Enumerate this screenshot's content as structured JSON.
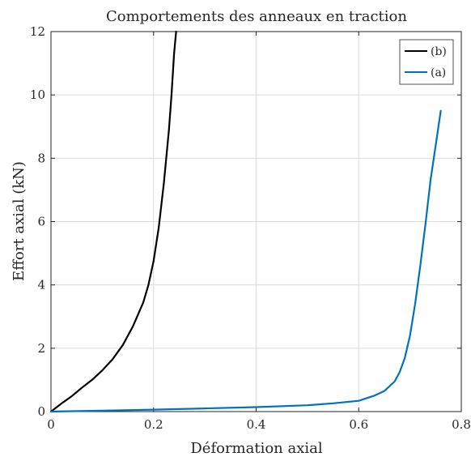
{
  "chart_data": {
    "type": "line",
    "title": "Comportements des anneaux en traction",
    "xlabel": "Déformation axial",
    "ylabel": "Effort axial (kN)",
    "xlim": [
      0,
      0.8
    ],
    "ylim": [
      0,
      12
    ],
    "xticks": [
      0,
      0.2,
      0.4,
      0.6,
      0.8
    ],
    "yticks": [
      0,
      2,
      4,
      6,
      8,
      10,
      12
    ],
    "xtick_labels": [
      "0",
      "0.2",
      "0.4",
      "0.6",
      "0.8"
    ],
    "ytick_labels": [
      "0",
      "2",
      "4",
      "6",
      "8",
      "10",
      "12"
    ],
    "grid": true,
    "legend_position": "top-right",
    "series": [
      {
        "name": "(b)",
        "color": "#000000",
        "x": [
          0,
          0.02,
          0.04,
          0.06,
          0.08,
          0.1,
          0.12,
          0.14,
          0.16,
          0.18,
          0.19,
          0.2,
          0.21,
          0.22,
          0.23,
          0.235,
          0.24,
          0.244
        ],
        "y": [
          0,
          0.25,
          0.48,
          0.75,
          1.0,
          1.3,
          1.65,
          2.1,
          2.7,
          3.45,
          4.0,
          4.75,
          5.8,
          7.2,
          8.9,
          10.0,
          11.3,
          12.0
        ]
      },
      {
        "name": "(a)",
        "color": "#0072BD",
        "x": [
          0,
          0.1,
          0.2,
          0.3,
          0.4,
          0.5,
          0.55,
          0.6,
          0.63,
          0.65,
          0.67,
          0.68,
          0.69,
          0.7,
          0.71,
          0.72,
          0.73,
          0.74,
          0.75,
          0.76
        ],
        "y": [
          0,
          0.03,
          0.06,
          0.1,
          0.14,
          0.2,
          0.26,
          0.34,
          0.5,
          0.65,
          0.95,
          1.25,
          1.7,
          2.4,
          3.4,
          4.6,
          5.9,
          7.3,
          8.4,
          9.5
        ]
      }
    ]
  }
}
